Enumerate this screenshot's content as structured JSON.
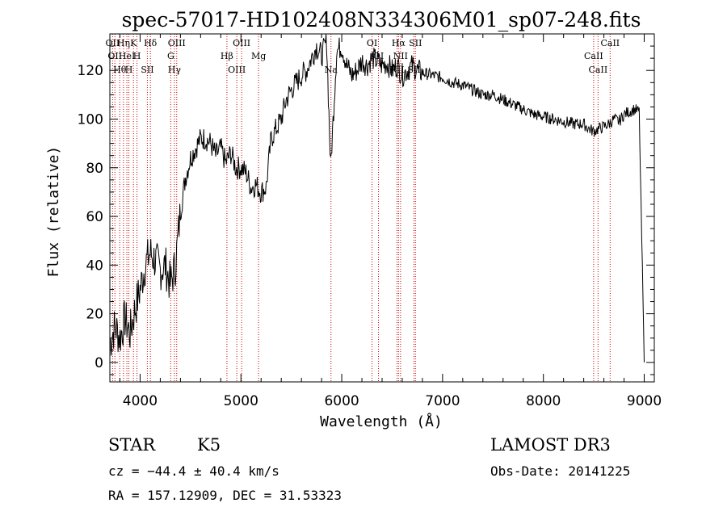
{
  "title": "spec-57017-HD102408N334306M01_sp07-248.fits",
  "chart_data": {
    "type": "line",
    "xlabel": "Wavelength (Å)",
    "ylabel": "Flux (relative)",
    "xlim": [
      3700,
      9100
    ],
    "ylim": [
      -8,
      135
    ],
    "xticks": [
      4000,
      5000,
      6000,
      7000,
      8000,
      9000
    ],
    "yticks": [
      0,
      20,
      40,
      60,
      80,
      100,
      120
    ],
    "grid": false,
    "line_color": "#000000",
    "marker_color": "#cc0000",
    "series": [
      {
        "x": [
          3700,
          3750,
          3800,
          3850,
          3900,
          3950,
          4000,
          4050,
          4100,
          4150,
          4200,
          4250,
          4300,
          4350,
          4400,
          4450,
          4500,
          4550,
          4600,
          4650,
          4700,
          4750,
          4800,
          4850,
          4900,
          4950,
          5000,
          5050,
          5100,
          5150,
          5200,
          5250,
          5300,
          5350,
          5400,
          5450,
          5500,
          5550,
          5600,
          5650,
          5700,
          5750,
          5800,
          5850,
          5890,
          5950,
          6000,
          6050,
          6100,
          6150,
          6200,
          6250,
          6300,
          6350,
          6400,
          6450,
          6500,
          6550,
          6600,
          6650,
          6700,
          6750,
          6800,
          6900,
          7000,
          7100,
          7200,
          7300,
          7400,
          7500,
          7600,
          7700,
          7800,
          7900,
          8000,
          8100,
          8200,
          8300,
          8400,
          8450,
          8500,
          8550,
          8600,
          8650,
          8700,
          8750,
          8800,
          8850,
          8900,
          8950,
          9000
        ],
        "values": [
          8,
          15,
          10,
          18,
          12,
          22,
          30,
          40,
          45,
          42,
          38,
          40,
          32,
          40,
          62,
          76,
          84,
          88,
          92,
          92,
          90,
          85,
          88,
          82,
          86,
          80,
          80,
          78,
          72,
          73,
          70,
          72,
          92,
          96,
          100,
          108,
          112,
          115,
          118,
          120,
          125,
          130,
          126,
          132,
          80,
          128,
          130,
          122,
          118,
          120,
          124,
          122,
          125,
          124,
          122,
          123,
          120,
          122,
          118,
          120,
          122,
          120,
          119,
          118,
          117,
          115,
          114,
          112,
          110,
          110,
          108,
          106,
          104,
          102,
          101,
          100,
          99,
          98,
          98,
          96,
          95,
          96,
          97,
          98,
          100,
          99,
          102,
          103,
          104,
          103,
          0
        ]
      }
    ],
    "lines": [
      {
        "x": 3727,
        "label": "OII"
      },
      {
        "x": 3750,
        "label": "OII"
      },
      {
        "x": 3798,
        "label": "Hθ"
      },
      {
        "x": 3835,
        "label": "Hη"
      },
      {
        "x": 3869,
        "label": "HeI"
      },
      {
        "x": 3889,
        "label": "H"
      },
      {
        "x": 3934,
        "label": "K"
      },
      {
        "x": 3969,
        "label": "H"
      },
      {
        "x": 4072,
        "label": "SII"
      },
      {
        "x": 4102,
        "label": "Hδ"
      },
      {
        "x": 4304,
        "label": "G"
      },
      {
        "x": 4340,
        "label": "Hγ"
      },
      {
        "x": 4363,
        "label": "OIII"
      },
      {
        "x": 4861,
        "label": "Hβ"
      },
      {
        "x": 4959,
        "label": "OIII"
      },
      {
        "x": 5007,
        "label": "OIII"
      },
      {
        "x": 5175,
        "label": "Mg"
      },
      {
        "x": 5893,
        "label": "Na"
      },
      {
        "x": 6300,
        "label": "OI"
      },
      {
        "x": 6364,
        "label": "OI"
      },
      {
        "x": 6548,
        "label": "NII"
      },
      {
        "x": 6563,
        "label": "Hα"
      },
      {
        "x": 6583,
        "label": "NII"
      },
      {
        "x": 6716,
        "label": "SII"
      },
      {
        "x": 6731,
        "label": "SII"
      },
      {
        "x": 8498,
        "label": "CaII"
      },
      {
        "x": 8542,
        "label": "CaII"
      },
      {
        "x": 8662,
        "label": "CaII"
      }
    ]
  },
  "info": {
    "class": "STAR",
    "subclass": "K5",
    "survey": "LAMOST DR3",
    "cz": "cz = −44.4 ± 40.4 km/s",
    "obsdate": "Obs-Date: 20141225",
    "coords": "RA = 157.12909, DEC =  31.53323"
  }
}
